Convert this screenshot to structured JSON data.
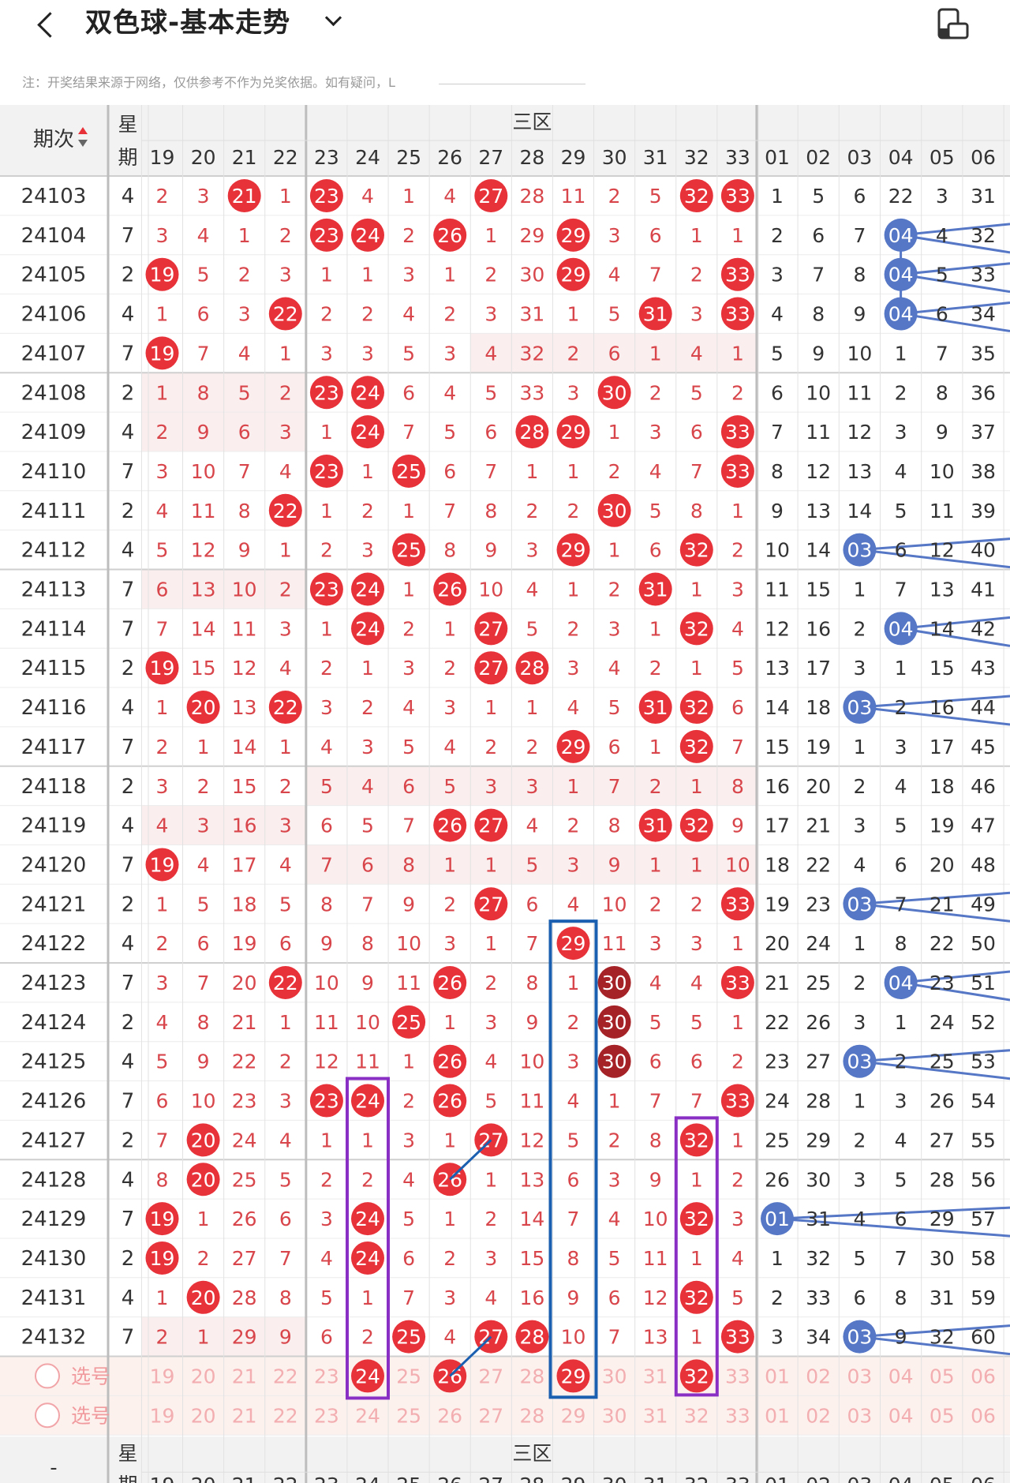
{
  "header": {
    "title": "双色球-基本走势",
    "notice": "注：开奖结果来源于网络，仅供参考不作为兑奖依据。如有疑问，L"
  },
  "table": {
    "col_issue": "期次",
    "col_week": "星期",
    "col_week_line1": "星",
    "col_week_line2": "期",
    "zone3": "三区",
    "red_cols": [
      "19",
      "20",
      "21",
      "22",
      "23",
      "24",
      "25",
      "26",
      "27",
      "28",
      "29",
      "30",
      "31",
      "32",
      "33"
    ],
    "blue_cols": [
      "01",
      "02",
      "03",
      "04",
      "05",
      "06"
    ],
    "rows": [
      {
        "issue": "24103",
        "week": "4",
        "red": [
          "2",
          "3",
          "21",
          "1",
          "23",
          "4",
          "1",
          "4",
          "27",
          "28",
          "11",
          "2",
          "5",
          "32",
          "33"
        ],
        "hits": [
          2,
          4,
          8,
          13,
          14
        ],
        "blue": [
          "1",
          "5",
          "6",
          "22",
          "3",
          "31"
        ],
        "bhit": -1
      },
      {
        "issue": "24104",
        "week": "7",
        "red": [
          "3",
          "4",
          "1",
          "2",
          "23",
          "24",
          "2",
          "26",
          "1",
          "29",
          "29",
          "3",
          "6",
          "1",
          "1"
        ],
        "hits": [
          4,
          5,
          7,
          10
        ],
        "blue": [
          "2",
          "6",
          "7",
          "04",
          "4",
          "32"
        ],
        "bhit": 3
      },
      {
        "issue": "24105",
        "week": "2",
        "red": [
          "19",
          "5",
          "2",
          "3",
          "1",
          "1",
          "3",
          "1",
          "2",
          "30",
          "29",
          "4",
          "7",
          "2",
          "33"
        ],
        "hits": [
          0,
          10,
          14
        ],
        "blue": [
          "3",
          "7",
          "8",
          "04",
          "5",
          "33"
        ],
        "bhit": 3
      },
      {
        "issue": "24106",
        "week": "4",
        "red": [
          "1",
          "6",
          "3",
          "22",
          "2",
          "2",
          "4",
          "2",
          "3",
          "31",
          "1",
          "5",
          "31",
          "3",
          "33"
        ],
        "hits": [
          3,
          12,
          14
        ],
        "blue": [
          "4",
          "8",
          "9",
          "04",
          "6",
          "34"
        ],
        "bhit": 3
      },
      {
        "issue": "24107",
        "week": "7",
        "red": [
          "19",
          "7",
          "4",
          "1",
          "3",
          "3",
          "5",
          "3",
          "4",
          "32",
          "2",
          "6",
          "1",
          "4",
          "1"
        ],
        "hits": [
          0
        ],
        "blue": [
          "5",
          "9",
          "10",
          "1",
          "7",
          "35"
        ],
        "bhit": -1
      },
      {
        "issue": "24108",
        "week": "2",
        "red": [
          "1",
          "8",
          "5",
          "2",
          "23",
          "24",
          "6",
          "4",
          "5",
          "33",
          "3",
          "30",
          "2",
          "5",
          "2"
        ],
        "hits": [
          4,
          5,
          11
        ],
        "blue": [
          "6",
          "10",
          "11",
          "2",
          "8",
          "36"
        ],
        "bhit": -1
      },
      {
        "issue": "24109",
        "week": "4",
        "red": [
          "2",
          "9",
          "6",
          "3",
          "1",
          "24",
          "7",
          "5",
          "6",
          "28",
          "29",
          "1",
          "3",
          "6",
          "33"
        ],
        "hits": [
          5,
          9,
          10,
          14
        ],
        "blue": [
          "7",
          "11",
          "12",
          "3",
          "9",
          "37"
        ],
        "bhit": -1
      },
      {
        "issue": "24110",
        "week": "7",
        "red": [
          "3",
          "10",
          "7",
          "4",
          "23",
          "1",
          "25",
          "6",
          "7",
          "1",
          "1",
          "2",
          "4",
          "7",
          "33"
        ],
        "hits": [
          4,
          6,
          14
        ],
        "blue": [
          "8",
          "12",
          "13",
          "4",
          "10",
          "38"
        ],
        "bhit": -1
      },
      {
        "issue": "24111",
        "week": "2",
        "red": [
          "4",
          "11",
          "8",
          "22",
          "1",
          "2",
          "1",
          "7",
          "8",
          "2",
          "2",
          "30",
          "5",
          "8",
          "1"
        ],
        "hits": [
          3,
          11
        ],
        "blue": [
          "9",
          "13",
          "14",
          "5",
          "11",
          "39"
        ],
        "bhit": -1
      },
      {
        "issue": "24112",
        "week": "4",
        "red": [
          "5",
          "12",
          "9",
          "1",
          "2",
          "3",
          "25",
          "8",
          "9",
          "3",
          "29",
          "1",
          "6",
          "32",
          "2"
        ],
        "hits": [
          6,
          10,
          13
        ],
        "blue": [
          "10",
          "14",
          "03",
          "6",
          "12",
          "40"
        ],
        "bhit": 2
      },
      {
        "issue": "24113",
        "week": "7",
        "red": [
          "6",
          "13",
          "10",
          "2",
          "23",
          "24",
          "1",
          "26",
          "10",
          "4",
          "1",
          "2",
          "31",
          "1",
          "3"
        ],
        "hits": [
          4,
          5,
          7,
          12
        ],
        "blue": [
          "11",
          "15",
          "1",
          "7",
          "13",
          "41"
        ],
        "bhit": -1
      },
      {
        "issue": "24114",
        "week": "7",
        "red": [
          "7",
          "14",
          "11",
          "3",
          "1",
          "24",
          "2",
          "1",
          "27",
          "5",
          "2",
          "3",
          "1",
          "32",
          "4"
        ],
        "hits": [
          5,
          8,
          13
        ],
        "blue": [
          "12",
          "16",
          "2",
          "04",
          "14",
          "42"
        ],
        "bhit": 3
      },
      {
        "issue": "24115",
        "week": "2",
        "red": [
          "19",
          "15",
          "12",
          "4",
          "2",
          "1",
          "3",
          "2",
          "27",
          "28",
          "3",
          "4",
          "2",
          "1",
          "5"
        ],
        "hits": [
          0,
          8,
          9
        ],
        "blue": [
          "13",
          "17",
          "3",
          "1",
          "15",
          "43"
        ],
        "bhit": -1
      },
      {
        "issue": "24116",
        "week": "4",
        "red": [
          "1",
          "20",
          "13",
          "22",
          "3",
          "2",
          "4",
          "3",
          "1",
          "1",
          "4",
          "5",
          "31",
          "32",
          "6"
        ],
        "hits": [
          1,
          3,
          12,
          13
        ],
        "blue": [
          "14",
          "18",
          "03",
          "2",
          "16",
          "44"
        ],
        "bhit": 2
      },
      {
        "issue": "24117",
        "week": "7",
        "red": [
          "2",
          "1",
          "14",
          "1",
          "4",
          "3",
          "5",
          "4",
          "2",
          "2",
          "29",
          "6",
          "1",
          "32",
          "7"
        ],
        "hits": [
          10,
          13
        ],
        "blue": [
          "15",
          "19",
          "1",
          "3",
          "17",
          "45"
        ],
        "bhit": -1
      },
      {
        "issue": "24118",
        "week": "2",
        "red": [
          "3",
          "2",
          "15",
          "2",
          "5",
          "4",
          "6",
          "5",
          "3",
          "3",
          "1",
          "7",
          "2",
          "1",
          "8"
        ],
        "hits": [],
        "blue": [
          "16",
          "20",
          "2",
          "4",
          "18",
          "46"
        ],
        "bhit": -1
      },
      {
        "issue": "24119",
        "week": "4",
        "red": [
          "4",
          "3",
          "16",
          "3",
          "6",
          "5",
          "7",
          "26",
          "27",
          "4",
          "2",
          "8",
          "31",
          "32",
          "9"
        ],
        "hits": [
          7,
          8,
          12,
          13
        ],
        "blue": [
          "17",
          "21",
          "3",
          "5",
          "19",
          "47"
        ],
        "bhit": -1
      },
      {
        "issue": "24120",
        "week": "7",
        "red": [
          "19",
          "4",
          "17",
          "4",
          "7",
          "6",
          "8",
          "1",
          "1",
          "5",
          "3",
          "9",
          "1",
          "1",
          "10"
        ],
        "hits": [
          0
        ],
        "blue": [
          "18",
          "22",
          "4",
          "6",
          "20",
          "48"
        ],
        "bhit": -1
      },
      {
        "issue": "24121",
        "week": "2",
        "red": [
          "1",
          "5",
          "18",
          "5",
          "8",
          "7",
          "9",
          "2",
          "27",
          "6",
          "4",
          "10",
          "2",
          "2",
          "33"
        ],
        "hits": [
          8,
          14
        ],
        "blue": [
          "19",
          "23",
          "03",
          "7",
          "21",
          "49"
        ],
        "bhit": 2
      },
      {
        "issue": "24122",
        "week": "4",
        "red": [
          "2",
          "6",
          "19",
          "6",
          "9",
          "8",
          "10",
          "3",
          "1",
          "7",
          "29",
          "11",
          "3",
          "3",
          "1"
        ],
        "hits": [
          10
        ],
        "blue": [
          "20",
          "24",
          "1",
          "8",
          "22",
          "50"
        ],
        "bhit": -1
      },
      {
        "issue": "24123",
        "week": "7",
        "red": [
          "3",
          "7",
          "20",
          "22",
          "10",
          "9",
          "11",
          "26",
          "2",
          "8",
          "1",
          "30",
          "4",
          "4",
          "33"
        ],
        "hits": [
          3,
          7,
          11,
          14
        ],
        "blue": [
          "21",
          "25",
          "2",
          "04",
          "23",
          "51"
        ],
        "bhit": 3
      },
      {
        "issue": "24124",
        "week": "2",
        "red": [
          "4",
          "8",
          "21",
          "1",
          "11",
          "10",
          "25",
          "1",
          "3",
          "9",
          "2",
          "30",
          "5",
          "5",
          "1"
        ],
        "hits": [
          6,
          11
        ],
        "blue": [
          "22",
          "26",
          "3",
          "1",
          "24",
          "52"
        ],
        "bhit": -1
      },
      {
        "issue": "24125",
        "week": "4",
        "red": [
          "5",
          "9",
          "22",
          "2",
          "12",
          "11",
          "1",
          "26",
          "4",
          "10",
          "3",
          "30",
          "6",
          "6",
          "2"
        ],
        "hits": [
          7,
          11
        ],
        "blue": [
          "23",
          "27",
          "03",
          "2",
          "25",
          "53"
        ],
        "bhit": 2
      },
      {
        "issue": "24126",
        "week": "7",
        "red": [
          "6",
          "10",
          "23",
          "3",
          "23",
          "24",
          "2",
          "26",
          "5",
          "11",
          "4",
          "1",
          "7",
          "7",
          "33"
        ],
        "hits": [
          4,
          5,
          7,
          14
        ],
        "blue": [
          "24",
          "28",
          "1",
          "3",
          "26",
          "54"
        ],
        "bhit": -1
      },
      {
        "issue": "24127",
        "week": "2",
        "red": [
          "7",
          "20",
          "24",
          "4",
          "1",
          "1",
          "3",
          "1",
          "27",
          "12",
          "5",
          "2",
          "8",
          "32",
          "1"
        ],
        "hits": [
          1,
          8,
          13
        ],
        "blue": [
          "25",
          "29",
          "2",
          "4",
          "27",
          "55"
        ],
        "bhit": -1
      },
      {
        "issue": "24128",
        "week": "4",
        "red": [
          "8",
          "20",
          "25",
          "5",
          "2",
          "2",
          "4",
          "26",
          "1",
          "13",
          "6",
          "3",
          "9",
          "1",
          "2"
        ],
        "hits": [
          1,
          7
        ],
        "blue": [
          "26",
          "30",
          "3",
          "5",
          "28",
          "56"
        ],
        "bhit": -1
      },
      {
        "issue": "24129",
        "week": "7",
        "red": [
          "19",
          "1",
          "26",
          "6",
          "3",
          "24",
          "5",
          "1",
          "2",
          "14",
          "7",
          "4",
          "10",
          "32",
          "3"
        ],
        "hits": [
          0,
          5,
          13
        ],
        "blue": [
          "01",
          "31",
          "4",
          "6",
          "29",
          "57"
        ],
        "bhit": 0
      },
      {
        "issue": "24130",
        "week": "2",
        "red": [
          "19",
          "2",
          "27",
          "7",
          "4",
          "24",
          "6",
          "2",
          "3",
          "15",
          "8",
          "5",
          "11",
          "1",
          "4"
        ],
        "hits": [
          0,
          5
        ],
        "blue": [
          "1",
          "32",
          "5",
          "7",
          "30",
          "58"
        ],
        "bhit": -1
      },
      {
        "issue": "24131",
        "week": "4",
        "red": [
          "1",
          "20",
          "28",
          "8",
          "5",
          "1",
          "7",
          "3",
          "4",
          "16",
          "9",
          "6",
          "12",
          "32",
          "5"
        ],
        "hits": [
          1,
          13
        ],
        "blue": [
          "2",
          "33",
          "6",
          "8",
          "31",
          "59"
        ],
        "bhit": -1
      },
      {
        "issue": "24132",
        "week": "7",
        "red": [
          "2",
          "1",
          "29",
          "9",
          "6",
          "2",
          "25",
          "4",
          "27",
          "28",
          "10",
          "7",
          "13",
          "1",
          "33"
        ],
        "hits": [
          6,
          8,
          9,
          14
        ],
        "blue": [
          "3",
          "34",
          "03",
          "9",
          "32",
          "60"
        ],
        "bhit": 2
      }
    ],
    "pick_label": "选号",
    "pick_rows": [
      {
        "label": "选号",
        "hits": [
          5,
          7,
          10,
          13
        ]
      },
      {
        "label": "选号",
        "hits": []
      }
    ]
  },
  "colors": {
    "red_ball": "#e8323a",
    "dark_red_ball": "#a52227",
    "blue_ball": "#5577c5",
    "box_blue": "#1a5fb0",
    "box_purple": "#8a2fc4"
  }
}
